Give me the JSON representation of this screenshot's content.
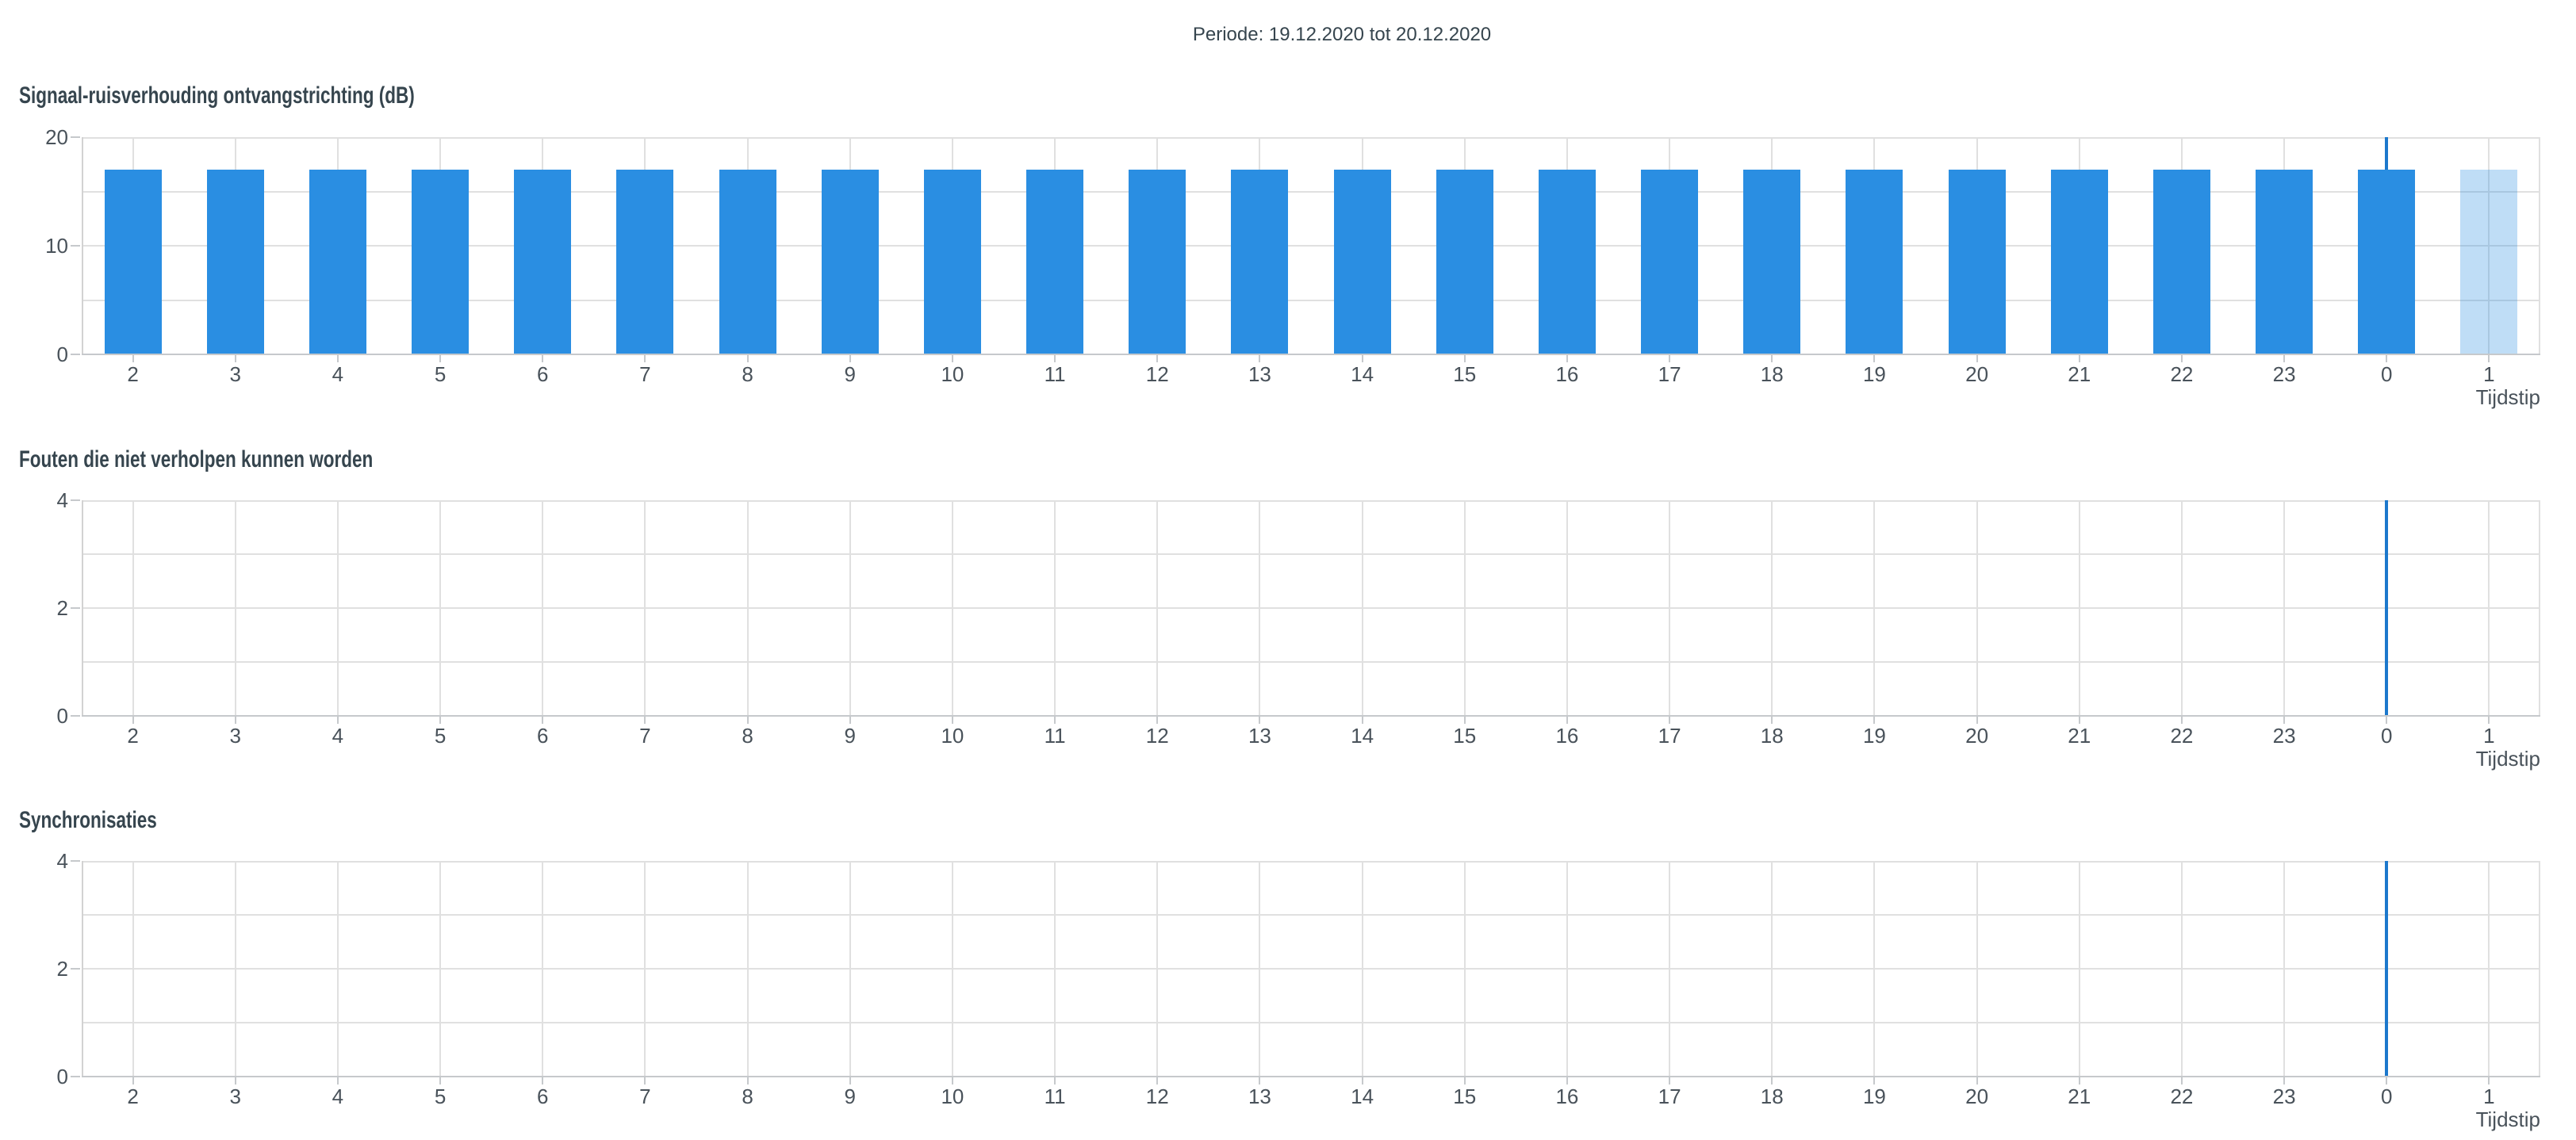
{
  "page": {
    "title": "Periode: 19.12.2020 tot 20.12.2020"
  },
  "colors": {
    "bar": "#2a8ee2",
    "bar_highlight": "rgba(42,142,226,0.30)",
    "marker": "#1c78cc",
    "grid": "#e0e0e0",
    "axis": "#c6c9cc",
    "border_left": "#d2d2d2",
    "border_right": "#e0e0e0",
    "title_text": "#36454e",
    "tick_text": "#49525a"
  },
  "chart_data": [
    {
      "type": "bar",
      "title": "Signaal-ruisverhouding ontvangstrichting (dB)",
      "xlabel": "Tijdstip",
      "ylabel": "",
      "categories": [
        "2",
        "3",
        "4",
        "5",
        "6",
        "7",
        "8",
        "9",
        "10",
        "11",
        "12",
        "13",
        "14",
        "15",
        "16",
        "17",
        "18",
        "19",
        "20",
        "21",
        "22",
        "23",
        "0",
        "1"
      ],
      "values": [
        17,
        17,
        17,
        17,
        17,
        17,
        17,
        17,
        17,
        17,
        17,
        17,
        17,
        17,
        17,
        17,
        17,
        17,
        17,
        17,
        17,
        17,
        17,
        17
      ],
      "highlight_category": "1",
      "ylim": [
        0,
        20
      ],
      "ytick_step": 5,
      "ytick_label_step": 10,
      "ytick_labels": [
        "0",
        "10",
        "20"
      ],
      "grid": true,
      "legend": false,
      "marker_x": "0"
    },
    {
      "type": "bar",
      "title": "Fouten die niet verholpen kunnen worden",
      "xlabel": "Tijdstip",
      "ylabel": "",
      "categories": [
        "2",
        "3",
        "4",
        "5",
        "6",
        "7",
        "8",
        "9",
        "10",
        "11",
        "12",
        "13",
        "14",
        "15",
        "16",
        "17",
        "18",
        "19",
        "20",
        "21",
        "22",
        "23",
        "0",
        "1"
      ],
      "values": [
        0,
        0,
        0,
        0,
        0,
        0,
        0,
        0,
        0,
        0,
        0,
        0,
        0,
        0,
        0,
        0,
        0,
        0,
        0,
        0,
        0,
        0,
        0,
        0
      ],
      "highlight_category": null,
      "ylim": [
        0,
        4
      ],
      "ytick_step": 1,
      "ytick_label_step": 2,
      "ytick_labels": [
        "0",
        "2",
        "4"
      ],
      "grid": true,
      "legend": false,
      "marker_x": "0"
    },
    {
      "type": "bar",
      "title": "Synchronisaties",
      "xlabel": "Tijdstip",
      "ylabel": "",
      "categories": [
        "2",
        "3",
        "4",
        "5",
        "6",
        "7",
        "8",
        "9",
        "10",
        "11",
        "12",
        "13",
        "14",
        "15",
        "16",
        "17",
        "18",
        "19",
        "20",
        "21",
        "22",
        "23",
        "0",
        "1"
      ],
      "values": [
        0,
        0,
        0,
        0,
        0,
        0,
        0,
        0,
        0,
        0,
        0,
        0,
        0,
        0,
        0,
        0,
        0,
        0,
        0,
        0,
        0,
        0,
        0,
        0
      ],
      "highlight_category": null,
      "ylim": [
        0,
        4
      ],
      "ytick_step": 1,
      "ytick_label_step": 2,
      "ytick_labels": [
        "0",
        "2",
        "4"
      ],
      "grid": true,
      "legend": false,
      "marker_x": "0"
    }
  ]
}
